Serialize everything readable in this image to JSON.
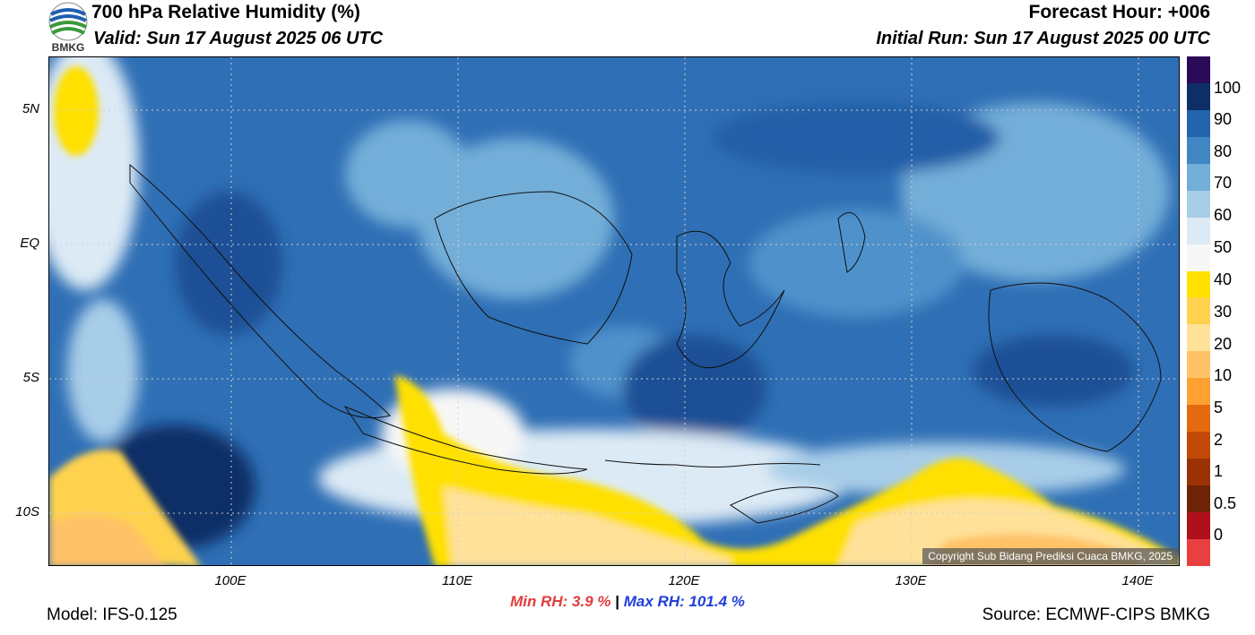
{
  "header": {
    "title": "700 hPa Relative Humidity (%)",
    "valid": "Valid: Sun 17 August 2025 06 UTC",
    "forecast_hour": "Forecast Hour: +006",
    "initial_run": "Initial Run: Sun 17 August 2025 00 UTC",
    "logo_text": "BMKG"
  },
  "map": {
    "lat_labels": [
      "5N",
      "EQ",
      "5S",
      "10S"
    ],
    "lon_labels": [
      "100E",
      "110E",
      "120E",
      "130E",
      "140E"
    ],
    "copyright": "Copyright Sub Bidang Prediksi Cuaca BMKG, 2025",
    "ocean_color": "#2f6fb5"
  },
  "colorbar": {
    "labels": [
      "100",
      "90",
      "80",
      "70",
      "60",
      "50",
      "40",
      "30",
      "20",
      "10",
      "5",
      "2",
      "1",
      "0.5",
      "0"
    ],
    "colors": [
      "#2b0a57",
      "#0d2f66",
      "#2264ad",
      "#3f86c3",
      "#73aed8",
      "#a8cde8",
      "#dceaf5",
      "#f7f7f7",
      "#ffe000",
      "#ffd24d",
      "#ffe199",
      "#ffc266",
      "#ffa033",
      "#e36a10",
      "#c24a08",
      "#9a3206",
      "#6e2404",
      "#b0101c",
      "#e84040"
    ]
  },
  "footer": {
    "min_rh": "Min RH:   3.9 %",
    "separator": "|",
    "max_rh": "Max RH: 101.4 %",
    "model": "Model: IFS-0.125",
    "source": "Source: ECMWF-CIPS BMKG"
  }
}
